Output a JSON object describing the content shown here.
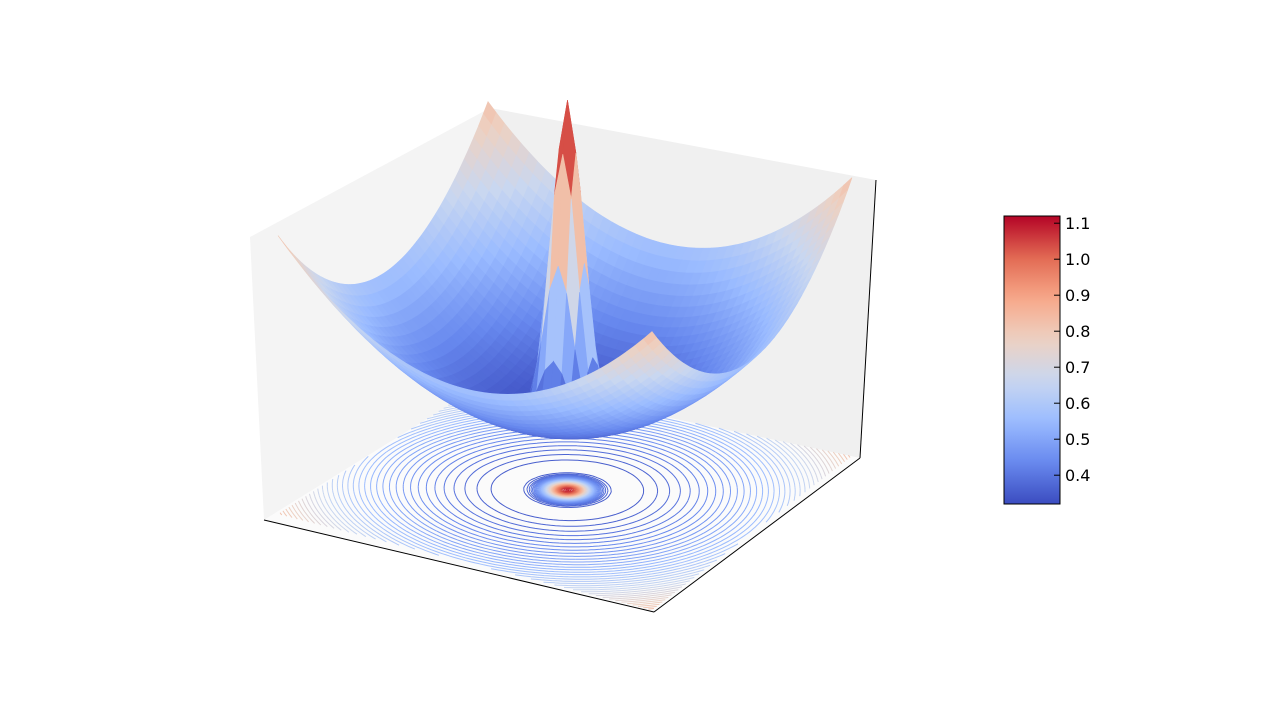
{
  "chart_data": {
    "type": "surface3d",
    "title": "",
    "xlabel": "",
    "ylabel": "",
    "zlabel": "",
    "colormap": "coolwarm",
    "colormap_stops": [
      "#3b4cc0",
      "#6788ee",
      "#9abbff",
      "#c9d7f0",
      "#edd1c2",
      "#f7a889",
      "#e26952",
      "#b40426"
    ],
    "pane_colors": {
      "left": "#f4f4f4",
      "back": "#f0f0f0",
      "floor": "#fbfbfb"
    },
    "axis_tick_labels_visible": false,
    "surface": {
      "description_values": {
        "corner_max": 0.83,
        "center_peak": 1.1,
        "minimum": 0.32
      },
      "x_range": [
        -1,
        1
      ],
      "y_range": [
        -1,
        1
      ],
      "zlim": [
        0.32,
        1.1
      ]
    },
    "contour_projection": {
      "plane": "floor",
      "levels": 60
    },
    "colorbar": {
      "ticks": [
        "0.4",
        "0.5",
        "0.6",
        "0.7",
        "0.8",
        "0.9",
        "1.0",
        "1.1"
      ],
      "range": [
        0.32,
        1.12
      ]
    }
  }
}
